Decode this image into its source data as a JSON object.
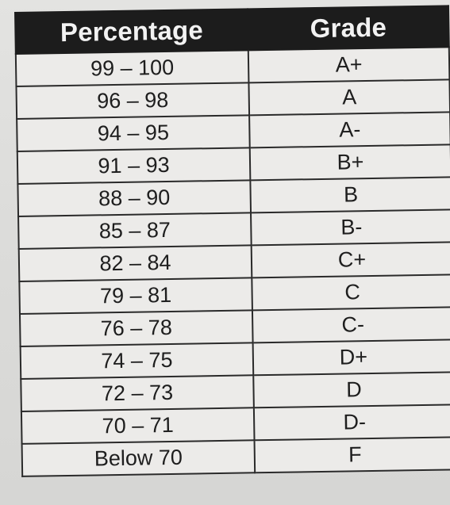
{
  "table": {
    "headers": [
      "Percentage",
      "Grade"
    ],
    "rows": [
      [
        "99 – 100",
        "A+"
      ],
      [
        "96 – 98",
        "A"
      ],
      [
        "94 – 95",
        "A-"
      ],
      [
        "91 – 93",
        "B+"
      ],
      [
        "88 – 90",
        "B"
      ],
      [
        "85 – 87",
        "B-"
      ],
      [
        "82 – 84",
        "C+"
      ],
      [
        "79 – 81",
        "C"
      ],
      [
        "76 – 78",
        "C-"
      ],
      [
        "74 – 75",
        "D+"
      ],
      [
        "72 – 73",
        "D"
      ],
      [
        "70 – 71",
        "D-"
      ],
      [
        "Below 70",
        "F"
      ]
    ]
  }
}
